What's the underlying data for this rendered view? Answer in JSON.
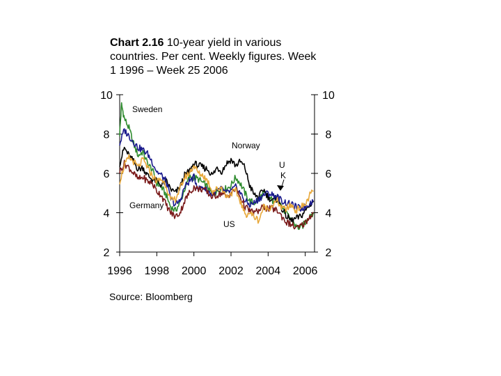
{
  "chart_data": {
    "type": "line",
    "title_bold": "Chart 2.16",
    "title": "10-year yield in various countries. Per cent. Weekly figures. Week 1 1996 – Week 25 2006",
    "source": "Source: Bloomberg",
    "xlim": [
      1996,
      2006.5
    ],
    "ylim": [
      2,
      10
    ],
    "x_ticks": [
      1996,
      1998,
      2000,
      2002,
      2004,
      2006
    ],
    "x_tick_labels": [
      "1996",
      "1998",
      "2000",
      "2002",
      "2004",
      "2006"
    ],
    "y_ticks": [
      10,
      8,
      6,
      4,
      2
    ],
    "y_tick_labels": [
      "10",
      "8",
      "6",
      "4",
      "2"
    ],
    "legend": "none",
    "grid": false,
    "series": [
      {
        "name": "Sweden",
        "label": "Sweden",
        "color": "#2e8b2e",
        "x": [
          1996.0,
          1996.1,
          1996.25,
          1996.5,
          1996.75,
          1997.0,
          1997.25,
          1997.5,
          1997.75,
          1998.0,
          1998.25,
          1998.5,
          1998.75,
          1999.0,
          1999.25,
          1999.5,
          1999.75,
          2000.0,
          2000.25,
          2000.5,
          2000.75,
          2001.0,
          2001.25,
          2001.5,
          2001.75,
          2002.0,
          2002.25,
          2002.5,
          2002.75,
          2003.0,
          2003.25,
          2003.5,
          2003.75,
          2004.0,
          2004.25,
          2004.5,
          2004.75,
          2005.0,
          2005.25,
          2005.5,
          2005.75,
          2006.0,
          2006.25,
          2006.45
        ],
        "y": [
          8.0,
          9.5,
          8.8,
          8.3,
          7.5,
          6.9,
          7.1,
          6.5,
          6.2,
          5.5,
          5.3,
          4.9,
          4.3,
          4.1,
          4.5,
          5.2,
          5.8,
          5.8,
          5.7,
          5.5,
          5.3,
          4.9,
          5.1,
          5.3,
          5.2,
          5.4,
          5.8,
          5.5,
          5.0,
          4.6,
          4.5,
          4.7,
          5.0,
          4.8,
          4.6,
          4.8,
          4.3,
          3.9,
          3.7,
          3.3,
          3.2,
          3.5,
          3.9,
          4.0
        ]
      },
      {
        "name": "Norway",
        "label": "Norway",
        "color": "#000000",
        "x": [
          1996.0,
          1996.25,
          1996.5,
          1996.75,
          1997.0,
          1997.25,
          1997.5,
          1997.75,
          1998.0,
          1998.25,
          1998.5,
          1998.75,
          1999.0,
          1999.25,
          1999.5,
          1999.75,
          2000.0,
          2000.25,
          2000.5,
          2000.75,
          2001.0,
          2001.25,
          2001.5,
          2001.75,
          2002.0,
          2002.25,
          2002.5,
          2002.75,
          2003.0,
          2003.25,
          2003.5,
          2003.75,
          2004.0,
          2004.25,
          2004.5,
          2004.75,
          2005.0,
          2005.25,
          2005.5,
          2005.75,
          2006.0,
          2006.25,
          2006.45
        ],
        "y": [
          6.5,
          7.3,
          6.9,
          6.6,
          6.2,
          6.3,
          5.9,
          5.7,
          5.6,
          5.4,
          5.6,
          5.2,
          5.0,
          5.3,
          5.9,
          6.1,
          6.5,
          6.4,
          6.3,
          6.2,
          5.9,
          6.3,
          6.1,
          6.5,
          6.7,
          6.4,
          6.6,
          6.3,
          5.4,
          4.9,
          4.8,
          5.2,
          4.8,
          4.6,
          4.7,
          4.2,
          3.8,
          3.6,
          3.7,
          3.8,
          4.1,
          4.4,
          4.6
        ]
      },
      {
        "name": "UK",
        "label": "U K",
        "color": "#1a1a8c",
        "x": [
          1996.0,
          1996.25,
          1996.5,
          1996.75,
          1997.0,
          1997.25,
          1997.5,
          1997.75,
          1998.0,
          1998.25,
          1998.5,
          1998.75,
          1999.0,
          1999.25,
          1999.5,
          1999.75,
          2000.0,
          2000.25,
          2000.5,
          2000.75,
          2001.0,
          2001.25,
          2001.5,
          2001.75,
          2002.0,
          2002.25,
          2002.5,
          2002.75,
          2003.0,
          2003.25,
          2003.5,
          2003.75,
          2004.0,
          2004.25,
          2004.5,
          2004.75,
          2005.0,
          2005.25,
          2005.5,
          2005.75,
          2006.0,
          2006.25,
          2006.45
        ],
        "y": [
          7.5,
          8.2,
          7.9,
          7.6,
          7.3,
          7.2,
          7.0,
          6.6,
          6.1,
          5.9,
          5.6,
          4.7,
          4.4,
          4.6,
          5.3,
          5.6,
          5.8,
          5.2,
          5.3,
          5.1,
          4.9,
          5.1,
          5.2,
          5.0,
          5.1,
          5.3,
          5.0,
          4.6,
          4.4,
          4.5,
          4.7,
          4.9,
          5.0,
          4.9,
          4.8,
          4.6,
          4.5,
          4.4,
          4.3,
          4.2,
          4.3,
          4.5,
          4.6
        ]
      },
      {
        "name": "Germany",
        "label": "Germany",
        "color": "#7a1a1a",
        "x": [
          1996.0,
          1996.25,
          1996.5,
          1996.75,
          1997.0,
          1997.25,
          1997.5,
          1997.75,
          1998.0,
          1998.25,
          1998.5,
          1998.75,
          1999.0,
          1999.25,
          1999.5,
          1999.75,
          2000.0,
          2000.25,
          2000.5,
          2000.75,
          2001.0,
          2001.25,
          2001.5,
          2001.75,
          2002.0,
          2002.25,
          2002.5,
          2002.75,
          2003.0,
          2003.25,
          2003.5,
          2003.75,
          2004.0,
          2004.25,
          2004.5,
          2004.75,
          2005.0,
          2005.25,
          2005.5,
          2005.75,
          2006.0,
          2006.25,
          2006.45
        ],
        "y": [
          6.1,
          6.5,
          6.3,
          6.0,
          5.7,
          5.8,
          5.6,
          5.5,
          5.1,
          4.9,
          4.4,
          4.0,
          3.8,
          4.0,
          4.6,
          5.0,
          5.3,
          5.2,
          5.2,
          5.0,
          4.8,
          4.9,
          5.0,
          4.8,
          5.0,
          5.2,
          4.8,
          4.3,
          4.1,
          4.0,
          4.1,
          4.3,
          4.2,
          4.2,
          4.1,
          3.8,
          3.5,
          3.4,
          3.2,
          3.3,
          3.5,
          3.8,
          4.0
        ]
      },
      {
        "name": "US",
        "label": "US",
        "color": "#e8a83a",
        "x": [
          1996.0,
          1996.25,
          1996.5,
          1996.75,
          1997.0,
          1997.25,
          1997.5,
          1997.75,
          1998.0,
          1998.25,
          1998.5,
          1998.75,
          1999.0,
          1999.25,
          1999.5,
          1999.75,
          2000.0,
          2000.25,
          2000.5,
          2000.75,
          2001.0,
          2001.25,
          2001.5,
          2001.75,
          2002.0,
          2002.25,
          2002.5,
          2002.75,
          2003.0,
          2003.25,
          2003.5,
          2003.75,
          2004.0,
          2004.25,
          2004.5,
          2004.75,
          2005.0,
          2005.25,
          2005.5,
          2005.75,
          2006.0,
          2006.25,
          2006.45
        ],
        "y": [
          5.6,
          6.4,
          6.8,
          6.6,
          6.3,
          6.7,
          6.3,
          5.9,
          5.6,
          5.7,
          5.4,
          4.6,
          4.7,
          5.2,
          5.8,
          6.0,
          6.4,
          6.0,
          5.9,
          5.6,
          5.1,
          5.2,
          5.3,
          4.8,
          5.0,
          5.1,
          4.6,
          3.9,
          4.0,
          3.8,
          3.6,
          4.3,
          4.2,
          4.4,
          4.6,
          4.2,
          4.2,
          4.4,
          4.1,
          4.3,
          4.4,
          4.9,
          5.1
        ]
      }
    ],
    "annotations": [
      {
        "text": "Sweden",
        "series": "Sweden"
      },
      {
        "text": "Norway",
        "series": "Norway"
      },
      {
        "text": "U K",
        "series": "UK"
      },
      {
        "text": "Germany",
        "series": "Germany"
      },
      {
        "text": "US",
        "series": "US"
      }
    ]
  }
}
